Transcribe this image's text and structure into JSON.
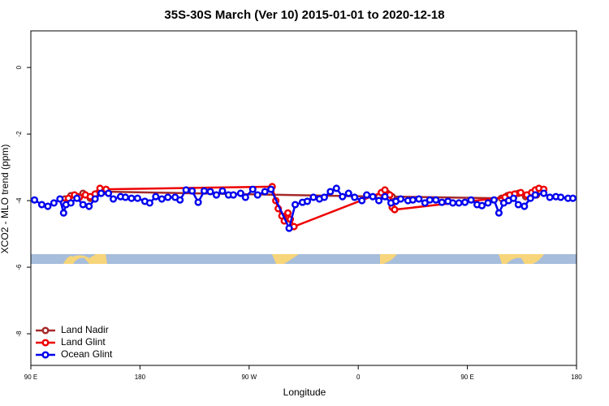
{
  "chart_data": {
    "type": "line",
    "title": "35S-30S March (Ver 10)   2015-01-01 to 2020-12-18",
    "x_label": "Longitude",
    "y_label": "XCO2 - MLO trend (ppm)",
    "xlim": [
      90,
      540
    ],
    "ylim": [
      -8.95,
      1.1
    ],
    "xticks": [
      {
        "value": 90,
        "label": "90 E"
      },
      {
        "value": 180,
        "label": "180"
      },
      {
        "value": 270,
        "label": "90 W"
      },
      {
        "value": 360,
        "label": "0"
      },
      {
        "value": 450,
        "label": "90 E"
      },
      {
        "value": 540,
        "label": "180"
      }
    ],
    "yticks": [
      -8,
      -6,
      -4,
      -2,
      0
    ],
    "legend": "bottom-left",
    "series": [
      {
        "name": "Land Nadir",
        "color": "#a52a2a",
        "x": [
          118,
          123,
          129,
          133,
          139,
          145,
          150,
          377,
          384,
          388,
          478,
          483,
          488,
          492,
          498,
          502,
          507
        ],
        "values": [
          -3.95,
          -3.85,
          -3.88,
          -3.78,
          -3.93,
          -3.78,
          -3.73,
          -3.88,
          -3.78,
          -3.88,
          -3.93,
          -3.85,
          -3.88,
          -3.78,
          -3.88,
          -3.9,
          -3.83
        ]
      },
      {
        "name": "Land Glint",
        "color": "#ee0000",
        "x": [
          117,
          121,
          126,
          130,
          135,
          139,
          143,
          147,
          152,
          289,
          292,
          294,
          297,
          299,
          302,
          304,
          307,
          379,
          382,
          386,
          388,
          390,
          481,
          485,
          489,
          494,
          499,
          503,
          506,
          509,
          513
        ],
        "values": [
          -4.07,
          -3.93,
          -3.83,
          -3.9,
          -3.83,
          -3.88,
          -3.8,
          -3.63,
          -3.66,
          -3.58,
          -4.0,
          -4.24,
          -4.46,
          -4.61,
          -4.37,
          -4.56,
          -4.78,
          -3.76,
          -3.68,
          -3.83,
          -4.2,
          -4.27,
          -3.9,
          -3.83,
          -3.8,
          -3.76,
          -3.83,
          -3.76,
          -3.68,
          -3.63,
          -3.66
        ]
      },
      {
        "name": "Ocean Glint",
        "color": "#0000ee",
        "x": [
          93,
          99,
          104,
          109,
          114,
          117,
          119,
          123,
          128,
          133,
          138,
          143,
          148,
          154,
          158,
          164,
          168,
          173,
          178,
          184,
          188,
          193,
          198,
          203,
          209,
          213,
          218,
          223,
          228,
          233,
          238,
          243,
          248,
          253,
          257,
          263,
          267,
          273,
          277,
          283,
          288,
          303,
          308,
          314,
          318,
          323,
          328,
          332,
          337,
          342,
          347,
          352,
          357,
          363,
          367,
          372,
          377,
          382,
          387,
          391,
          395,
          401,
          405,
          410,
          415,
          419,
          424,
          429,
          434,
          438,
          443,
          448,
          453,
          458,
          462,
          467,
          472,
          476,
          480,
          484,
          488,
          492,
          497,
          502,
          506,
          513,
          518,
          523,
          527,
          533,
          537
        ],
        "values": [
          -3.98,
          -4.12,
          -4.17,
          -4.07,
          -3.95,
          -4.37,
          -4.12,
          -4.07,
          -3.93,
          -4.12,
          -4.17,
          -3.95,
          -3.78,
          -3.78,
          -3.95,
          -3.88,
          -3.9,
          -3.93,
          -3.93,
          -4.02,
          -4.07,
          -3.88,
          -3.95,
          -3.9,
          -3.9,
          -3.98,
          -3.68,
          -3.71,
          -4.05,
          -3.71,
          -3.73,
          -3.83,
          -3.71,
          -3.83,
          -3.83,
          -3.78,
          -3.9,
          -3.66,
          -3.83,
          -3.73,
          -3.66,
          -4.83,
          -4.12,
          -4.05,
          -4.02,
          -3.9,
          -3.95,
          -3.9,
          -3.73,
          -3.63,
          -3.88,
          -3.78,
          -3.9,
          -4.0,
          -3.83,
          -3.88,
          -4.0,
          -3.88,
          -4.07,
          -4.02,
          -3.95,
          -4.0,
          -3.98,
          -3.95,
          -4.07,
          -3.98,
          -3.98,
          -4.05,
          -4.02,
          -4.07,
          -4.07,
          -4.05,
          -3.98,
          -4.12,
          -4.15,
          -4.07,
          -3.98,
          -4.37,
          -4.07,
          -4.0,
          -3.93,
          -4.12,
          -4.17,
          -3.93,
          -3.83,
          -3.78,
          -3.9,
          -3.88,
          -3.9,
          -3.93,
          -3.93
        ]
      }
    ]
  }
}
